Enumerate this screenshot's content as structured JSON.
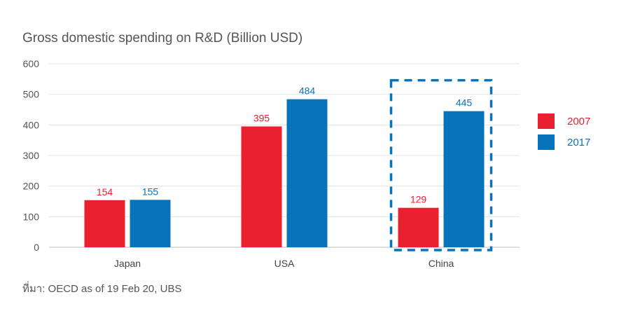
{
  "chart_data": {
    "type": "bar",
    "title": "Gross domestic spending on R&D (Billion USD)",
    "categories": [
      "Japan",
      "USA",
      "China"
    ],
    "series": [
      {
        "name": "2007",
        "color": "#e8202f",
        "values": [
          154,
          395,
          129
        ]
      },
      {
        "name": "2017",
        "color": "#0773bb",
        "values": [
          155,
          484,
          445
        ]
      }
    ],
    "yticks": [
      0,
      100,
      200,
      300,
      400,
      500,
      600
    ],
    "ylim": [
      0,
      600
    ],
    "xlabel": "",
    "ylabel": "",
    "highlight_category": "China",
    "highlight_color": "#0773bb",
    "legend_position": "right",
    "source": "ที่มา: OECD as of 19 Feb 20, UBS"
  }
}
